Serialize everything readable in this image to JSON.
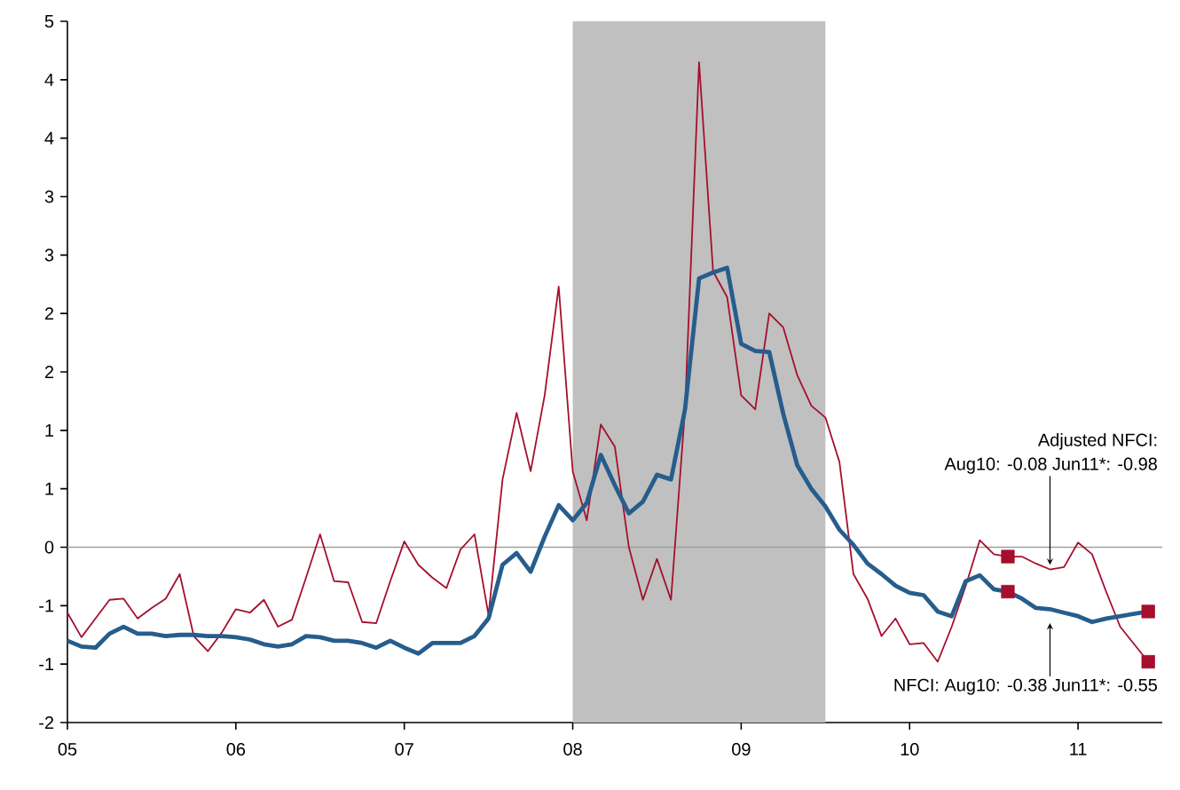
{
  "chart_data": {
    "type": "line",
    "x": [
      "2005-01",
      "2005-02",
      "2005-03",
      "2005-04",
      "2005-05",
      "2005-06",
      "2005-07",
      "2005-08",
      "2005-09",
      "2005-10",
      "2005-11",
      "2005-12",
      "2006-01",
      "2006-02",
      "2006-03",
      "2006-04",
      "2006-05",
      "2006-06",
      "2006-07",
      "2006-08",
      "2006-09",
      "2006-10",
      "2006-11",
      "2006-12",
      "2007-01",
      "2007-02",
      "2007-03",
      "2007-04",
      "2007-05",
      "2007-06",
      "2007-07",
      "2007-08",
      "2007-09",
      "2007-10",
      "2007-11",
      "2007-12",
      "2008-01",
      "2008-02",
      "2008-03",
      "2008-04",
      "2008-05",
      "2008-06",
      "2008-07",
      "2008-08",
      "2008-09",
      "2008-10",
      "2008-11",
      "2008-12",
      "2009-01",
      "2009-02",
      "2009-03",
      "2009-04",
      "2009-05",
      "2009-06",
      "2009-07",
      "2009-08",
      "2009-09",
      "2009-10",
      "2009-11",
      "2009-12",
      "2010-01",
      "2010-02",
      "2010-03",
      "2010-04",
      "2010-05",
      "2010-06",
      "2010-07",
      "2010-08",
      "2010-09",
      "2010-10",
      "2010-11",
      "2010-12",
      "2011-01",
      "2011-02",
      "2011-03",
      "2011-04",
      "2011-05",
      "2011-06"
    ],
    "series": [
      {
        "color": "#a50f2d",
        "values": [
          -0.56,
          -0.77,
          -0.61,
          -0.45,
          -0.44,
          -0.61,
          -0.52,
          -0.44,
          -0.23,
          -0.76,
          -0.89,
          -0.73,
          -0.53,
          -0.56,
          -0.45,
          -0.68,
          -0.62,
          -0.26,
          0.11,
          -0.29,
          -0.3,
          -0.64,
          -0.65,
          -0.29,
          0.05,
          -0.15,
          -0.26,
          -0.35,
          -0.02,
          0.11,
          -0.58,
          0.58,
          1.15,
          0.65,
          1.3,
          2.23,
          0.65,
          0.23,
          1.05,
          0.86,
          0.0,
          -0.45,
          -0.1,
          -0.45,
          1.18,
          4.15,
          2.36,
          2.14,
          1.3,
          1.18,
          2.0,
          1.88,
          1.47,
          1.21,
          1.11,
          0.73,
          -0.23,
          -0.44,
          -0.76,
          -0.61,
          -0.83,
          -0.82,
          -0.98,
          -0.68,
          -0.33,
          0.06,
          -0.06,
          -0.08,
          -0.08,
          -0.14,
          -0.19,
          -0.17,
          0.04,
          -0.06,
          -0.38,
          -0.68,
          -0.83,
          -0.98
        ]
      },
      {
        "color": "#265d8c",
        "values": [
          -0.8,
          -0.85,
          -0.86,
          -0.74,
          -0.68,
          -0.74,
          -0.74,
          -0.76,
          -0.75,
          -0.75,
          -0.76,
          -0.76,
          -0.77,
          -0.79,
          -0.83,
          -0.85,
          -0.83,
          -0.76,
          -0.77,
          -0.8,
          -0.8,
          -0.82,
          -0.86,
          -0.8,
          -0.86,
          -0.91,
          -0.82,
          -0.82,
          -0.82,
          -0.76,
          -0.61,
          -0.15,
          -0.05,
          -0.21,
          0.09,
          0.36,
          0.23,
          0.38,
          0.79,
          0.53,
          0.29,
          0.39,
          0.62,
          0.58,
          1.18,
          2.3,
          2.35,
          2.39,
          1.74,
          1.68,
          1.67,
          1.14,
          0.7,
          0.5,
          0.35,
          0.15,
          0.02,
          -0.14,
          -0.23,
          -0.33,
          -0.39,
          -0.41,
          -0.55,
          -0.59,
          -0.29,
          -0.24,
          -0.36,
          -0.38,
          -0.44,
          -0.52,
          -0.53,
          -0.56,
          -0.59,
          -0.64,
          -0.61,
          -0.59,
          -0.57,
          -0.55
        ]
      },
      {
        "type": "scatter",
        "marker": "square",
        "color": "#a50f2d",
        "x": [
          "2010-08",
          "2011-06",
          "2010-08",
          "2011-06"
        ],
        "values": [
          -0.08,
          -0.98,
          -0.38,
          -0.55
        ]
      }
    ],
    "xlim": [
      "2005-01",
      "2011-07"
    ],
    "xticks": [
      {
        "value": "2005",
        "label": "05"
      },
      {
        "value": "2006",
        "label": "06"
      },
      {
        "value": "2007",
        "label": "07"
      },
      {
        "value": "2008",
        "label": "08"
      },
      {
        "value": "2009",
        "label": "09"
      },
      {
        "value": "2010",
        "label": "10"
      },
      {
        "value": "2011",
        "label": "11"
      }
    ],
    "ylim": [
      -1.5,
      4.5
    ],
    "yticks": [
      {
        "value": -1.5,
        "label": "-2"
      },
      {
        "value": -1,
        "label": "-1"
      },
      {
        "value": -0.5,
        "label": "-1"
      },
      0,
      {
        "value": 0.5,
        "label": "1"
      },
      1,
      {
        "value": 1.5,
        "label": "2"
      },
      2,
      {
        "value": 2.5,
        "label": "3"
      },
      3,
      {
        "value": 3.5,
        "label": "4"
      },
      4,
      {
        "value": 4.5,
        "label": "5"
      }
    ],
    "bands": [
      {
        "axis": "x",
        "from": "2008-01",
        "to": "2009-07",
        "color": "#c0c0c0"
      }
    ],
    "ref_lines": [
      {
        "axis": "y",
        "value": 0,
        "color": "#a0a0a0"
      }
    ],
    "annotations": [
      {
        "text": "Aug10: -0.08 Jun11*: -0.98",
        "x": "2010-11",
        "y": -0.15
      },
      "Adjusted NFCI:",
      {
        "text": "NFCI: Aug10: -0.38 Jun11*: -0.55",
        "x": "2010-11",
        "y": -0.65
      }
    ],
    "grid": false
  }
}
